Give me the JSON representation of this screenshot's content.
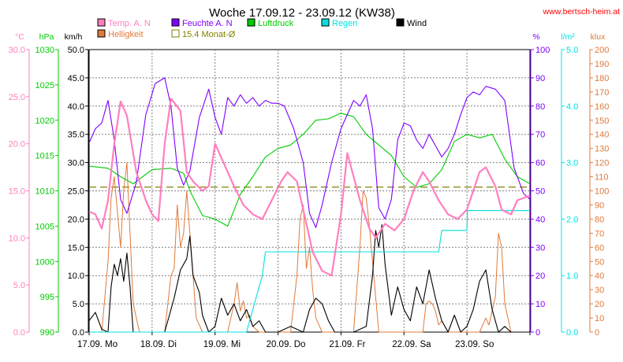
{
  "chart_data": {
    "type": "line",
    "title": "Woche 17.09.12 - 23.09.12 (KW38)",
    "website": "www.bertsch-heim.at",
    "x_labels": [
      "17.09.  Mo",
      "18.09.  Di",
      "19.09.  Mi",
      "20.09.  Do",
      "21.09.  Fr",
      "22.09.  Sa",
      "23.09.  So"
    ],
    "x_range_days": [
      0,
      7
    ],
    "grid": true,
    "legend": [
      {
        "name": "Temp. A. N",
        "color": "#ff7fbf"
      },
      {
        "name": "Feuchte A. N",
        "color": "#7f00ff"
      },
      {
        "name": "Luftdruck",
        "color": "#00cc00"
      },
      {
        "name": "Regen",
        "color": "#00e0e0"
      },
      {
        "name": "Wind",
        "color": "#000000"
      },
      {
        "name": "Helligkeit",
        "color": "#e07a3a"
      },
      {
        "name": "15.4 Monat-Ø",
        "color": "#808000"
      }
    ],
    "axes": {
      "temp": {
        "unit": "°C",
        "color": "#ff7fbf",
        "range": [
          0,
          30
        ],
        "ticks": [
          "0.0",
          "5.0",
          "10.0",
          "15.0",
          "20.0",
          "25.0",
          "30.0"
        ]
      },
      "pressure": {
        "unit": "hPa",
        "color": "#00cc00",
        "range": [
          990,
          1030
        ],
        "ticks": [
          "990",
          "995",
          "1000",
          "1005",
          "1010",
          "1015",
          "1020",
          "1025",
          "1030"
        ]
      },
      "wind": {
        "unit": "km/h",
        "color": "#000000",
        "range": [
          0,
          50
        ],
        "ticks": [
          "0.0",
          "5.0",
          "10.0",
          "15.0",
          "20.0",
          "25.0",
          "30.0",
          "35.0",
          "40.0",
          "45.0",
          "50.0"
        ]
      },
      "humidity": {
        "unit": "%",
        "color": "#7f00ff",
        "range": [
          0,
          100
        ],
        "ticks": [
          "0",
          "10",
          "20",
          "30",
          "40",
          "50",
          "60",
          "70",
          "80",
          "90",
          "100"
        ]
      },
      "rain": {
        "unit": "l/m²",
        "color": "#00e0e0",
        "range": [
          0,
          5
        ],
        "ticks": [
          "0.0",
          "1.0",
          "2.0",
          "3.0",
          "4.0",
          "5.0"
        ]
      },
      "light": {
        "unit": "klux",
        "color": "#e07a3a",
        "range": [
          0,
          200
        ],
        "ticks": [
          "0",
          "10",
          "20",
          "30",
          "40",
          "50",
          "60",
          "70",
          "80",
          "90",
          "100",
          "110",
          "120",
          "130",
          "140",
          "150",
          "160",
          "170",
          "180",
          "190",
          "200"
        ]
      }
    },
    "monthly_avg_temp": 15.4,
    "series": [
      {
        "name": "Temp. A. N",
        "axis": "temp",
        "color": "#ff7fbf",
        "x": [
          0,
          0.1,
          0.2,
          0.3,
          0.4,
          0.5,
          0.6,
          0.75,
          0.9,
          1.0,
          1.1,
          1.2,
          1.3,
          1.45,
          1.55,
          1.65,
          1.8,
          1.9,
          2.0,
          2.1,
          2.2,
          2.3,
          2.45,
          2.6,
          2.75,
          2.9,
          3.05,
          3.15,
          3.3,
          3.45,
          3.55,
          3.7,
          3.85,
          4.0,
          4.1,
          4.2,
          4.3,
          4.45,
          4.55,
          4.7,
          4.85,
          5.0,
          5.15,
          5.3,
          5.4,
          5.55,
          5.7,
          5.85,
          6.0,
          6.1,
          6.2,
          6.3,
          6.45,
          6.55,
          6.7,
          6.8,
          7.0
        ],
        "y": [
          12.8,
          12.5,
          11.0,
          14.0,
          20.0,
          24.5,
          23.0,
          17.0,
          14.0,
          12.5,
          11.8,
          20.0,
          24.8,
          23.5,
          17.0,
          16.0,
          15.0,
          15.5,
          20.0,
          18.5,
          17.0,
          15.5,
          13.5,
          12.5,
          12.0,
          14.0,
          16.0,
          17.0,
          16.0,
          11.5,
          8.5,
          6.5,
          6.0,
          12.5,
          19.0,
          16.5,
          14.0,
          11.0,
          10.0,
          11.5,
          10.8,
          12.0,
          15.0,
          17.0,
          16.0,
          14.0,
          12.5,
          12.0,
          13.0,
          15.0,
          17.0,
          17.5,
          15.5,
          13.0,
          12.5,
          14.0,
          14.5
        ]
      },
      {
        "name": "Feuchte A. N",
        "axis": "humidity",
        "color": "#7f00ff",
        "x": [
          0,
          0.1,
          0.2,
          0.3,
          0.4,
          0.5,
          0.6,
          0.75,
          0.9,
          1.05,
          1.2,
          1.3,
          1.4,
          1.5,
          1.6,
          1.75,
          1.9,
          2.0,
          2.1,
          2.2,
          2.3,
          2.4,
          2.5,
          2.6,
          2.7,
          2.8,
          2.9,
          3.0,
          3.1,
          3.25,
          3.4,
          3.5,
          3.6,
          3.7,
          3.85,
          4.0,
          4.1,
          4.2,
          4.3,
          4.4,
          4.5,
          4.6,
          4.7,
          4.8,
          4.9,
          5.0,
          5.1,
          5.2,
          5.3,
          5.4,
          5.5,
          5.6,
          5.7,
          5.8,
          5.9,
          6.0,
          6.1,
          6.2,
          6.3,
          6.45,
          6.6,
          6.75,
          6.9,
          7.0
        ],
        "y": [
          67,
          72,
          74,
          82,
          68,
          47,
          42,
          53,
          77,
          88,
          90,
          80,
          58,
          52,
          57,
          76,
          86,
          76,
          70,
          83,
          80,
          84,
          81,
          83,
          80,
          82,
          81,
          81,
          80,
          72,
          60,
          42,
          37,
          45,
          60,
          72,
          77,
          82,
          80,
          84,
          72,
          44,
          40,
          47,
          68,
          74,
          73,
          68,
          65,
          70,
          66,
          62,
          65,
          70,
          77,
          83,
          85,
          84,
          87,
          86,
          82,
          58,
          49,
          47
        ]
      },
      {
        "name": "Luftdruck",
        "axis": "pressure",
        "color": "#00cc00",
        "x": [
          0,
          0.3,
          0.5,
          0.7,
          1.0,
          1.3,
          1.5,
          1.6,
          1.8,
          2.0,
          2.2,
          2.4,
          2.6,
          2.8,
          3.0,
          3.2,
          3.4,
          3.6,
          3.8,
          4.0,
          4.2,
          4.4,
          4.6,
          4.8,
          5.0,
          5.2,
          5.4,
          5.6,
          5.8,
          6.0,
          6.2,
          6.4,
          6.6,
          6.8,
          7.0
        ],
        "y": [
          1013.5,
          1013.2,
          1012.0,
          1011.0,
          1013.0,
          1013.2,
          1012.5,
          1010.0,
          1006.5,
          1006.0,
          1005.0,
          1009.5,
          1012.0,
          1014.8,
          1016.0,
          1016.5,
          1018.0,
          1020.0,
          1020.2,
          1021.0,
          1020.5,
          1018.0,
          1016.5,
          1015.0,
          1012.0,
          1010.5,
          1011.0,
          1013.0,
          1017.0,
          1018.0,
          1017.5,
          1018.0,
          1014.5,
          1012.0,
          1011.0
        ]
      },
      {
        "name": "Regen",
        "axis": "rain",
        "color": "#00e0e0",
        "x": [
          0,
          2.5,
          2.65,
          2.75,
          2.8,
          3.0,
          3.5,
          4.0,
          4.5,
          5.0,
          5.3,
          5.55,
          5.6,
          5.9,
          6.0,
          6.01,
          6.5,
          7.0
        ],
        "y": [
          0,
          0,
          0.6,
          1.0,
          1.42,
          1.42,
          1.42,
          1.42,
          1.42,
          1.42,
          1.42,
          1.42,
          1.8,
          1.8,
          1.8,
          2.15,
          2.15,
          2.15
        ]
      },
      {
        "name": "Wind",
        "axis": "wind",
        "color": "#000000",
        "x": [
          0,
          0.1,
          0.2,
          0.3,
          0.35,
          0.4,
          0.45,
          0.5,
          0.55,
          0.6,
          0.65,
          0.7,
          0.8,
          1.0,
          1.2,
          1.35,
          1.45,
          1.55,
          1.6,
          1.65,
          1.75,
          1.8,
          1.9,
          2.0,
          2.1,
          2.2,
          2.3,
          2.4,
          2.5,
          2.6,
          2.7,
          2.8,
          3.0,
          3.2,
          3.4,
          3.5,
          3.6,
          3.7,
          3.8,
          3.9,
          4.0,
          4.2,
          4.4,
          4.5,
          4.55,
          4.6,
          4.65,
          4.7,
          4.8,
          4.9,
          5.0,
          5.1,
          5.2,
          5.3,
          5.4,
          5.5,
          5.6,
          5.7,
          5.8,
          5.9,
          6.0,
          6.1,
          6.2,
          6.3,
          6.4,
          6.5,
          6.6,
          6.7,
          7.0
        ],
        "y": [
          2,
          3.5,
          0.5,
          0,
          8,
          12,
          10,
          13,
          9,
          14,
          8,
          0,
          0,
          0,
          0,
          6,
          11,
          13,
          17,
          10,
          7,
          3,
          0,
          1,
          6,
          3,
          5,
          2,
          4,
          1,
          2,
          0,
          0,
          1,
          0,
          4,
          6,
          5,
          2,
          0,
          0,
          0,
          1,
          10,
          18,
          15,
          19,
          12,
          3,
          8,
          4,
          2,
          8,
          5,
          11,
          6,
          2,
          0,
          3,
          0,
          1,
          4,
          9,
          11,
          4,
          0,
          1,
          0,
          0
        ]
      },
      {
        "name": "Helligkeit",
        "axis": "light",
        "color": "#e07a3a",
        "x": [
          0,
          0.2,
          0.3,
          0.35,
          0.4,
          0.45,
          0.5,
          0.55,
          0.6,
          0.65,
          0.7,
          0.8,
          1.2,
          1.3,
          1.35,
          1.4,
          1.45,
          1.5,
          1.55,
          1.6,
          1.65,
          1.7,
          1.8,
          2.2,
          2.3,
          2.35,
          2.4,
          2.45,
          2.5,
          2.55,
          2.6,
          2.7,
          3.2,
          3.3,
          3.35,
          3.4,
          3.45,
          3.5,
          3.55,
          3.6,
          3.7,
          4.2,
          4.3,
          4.35,
          4.4,
          4.45,
          4.5,
          4.6,
          5.2,
          5.3,
          5.35,
          5.4,
          5.45,
          5.5,
          5.55,
          5.6,
          5.7,
          6.2,
          6.3,
          6.35,
          6.4,
          6.45,
          6.5,
          6.55,
          6.6,
          6.7,
          7.0
        ],
        "y": [
          0,
          0,
          50,
          95,
          110,
          85,
          60,
          100,
          120,
          70,
          20,
          0,
          0,
          40,
          45,
          90,
          60,
          70,
          100,
          70,
          40,
          10,
          0,
          0,
          20,
          35,
          15,
          22,
          10,
          12,
          4,
          0,
          0,
          40,
          80,
          90,
          45,
          60,
          30,
          10,
          0,
          0,
          60,
          100,
          95,
          75,
          50,
          0,
          0,
          0,
          20,
          22,
          20,
          15,
          5,
          8,
          0,
          0,
          10,
          5,
          15,
          25,
          70,
          60,
          20,
          0,
          0
        ]
      }
    ]
  }
}
